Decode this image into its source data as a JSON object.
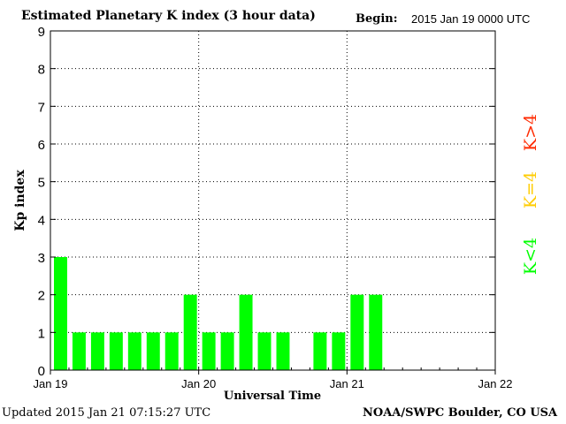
{
  "header": {
    "title": "Estimated Planetary K index (3 hour data)",
    "begin_label": "Begin:",
    "begin_value": "2015 Jan 19 0000 UTC"
  },
  "footer": {
    "updated": "Updated 2015 Jan 21 07:15:27 UTC",
    "credit": "NOAA/SWPC Boulder, CO USA"
  },
  "legend": [
    {
      "label": "K>4",
      "color": "#ff2a00"
    },
    {
      "label": "K=4",
      "color": "#ffcc00"
    },
    {
      "label": "K<4",
      "color": "#00ff00"
    }
  ],
  "colors": {
    "low": "#00ff00",
    "mid": "#ffcc00",
    "high": "#ff2a00"
  },
  "chart_data": {
    "type": "bar",
    "title": "Estimated Planetary K index (3 hour data)",
    "xlabel": "Universal Time",
    "ylabel": "Kp index",
    "ylim": [
      0,
      9
    ],
    "yticks": [
      0,
      1,
      2,
      3,
      4,
      5,
      6,
      7,
      8,
      9
    ],
    "xticks": [
      "Jan 19",
      "Jan 20",
      "Jan 21",
      "Jan 22"
    ],
    "grid": true,
    "bar_interval_hours": 3,
    "x_span_hours": 72,
    "values": [
      3,
      1,
      1,
      1,
      1,
      1,
      1,
      2,
      1,
      1,
      2,
      1,
      1,
      0,
      1,
      1,
      2,
      2
    ]
  }
}
